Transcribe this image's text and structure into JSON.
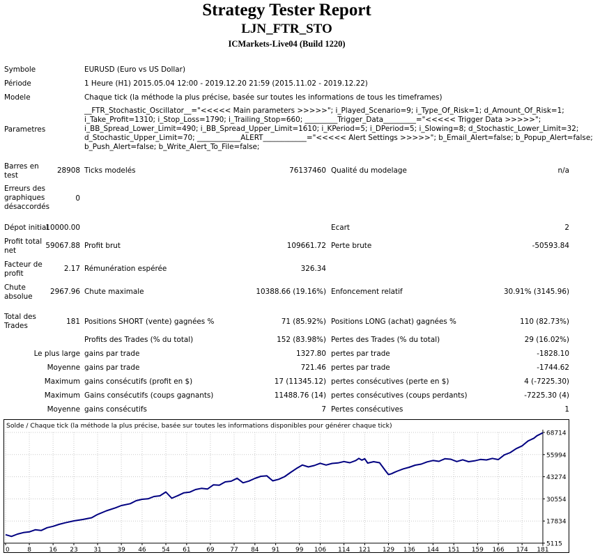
{
  "report": {
    "title": "Strategy Tester Report",
    "expert": "LJN_FTR_STO",
    "server": "ICMarkets-Live04 (Build 1220)"
  },
  "info": {
    "symbol_label": "Symbole",
    "symbol_value": "EURUSD (Euro vs US Dollar)",
    "period_label": "Période",
    "period_value": "1 Heure (H1) 2015.05.04 12:00 - 2019.12.20 21:59 (2015.11.02 - 2019.12.22)",
    "model_label": "Modele",
    "model_value": "Chaque tick (la méthode la plus précise, basée sur toutes les informations de tous les timeframes)",
    "params_label": "Parametres",
    "params_lines": [
      "__FTR_Stochastic_Oscillator__=\"<<<<< Main parameters >>>>>\"; i_Played_Scenario=9; i_Type_Of_Risk=1; d_Amount_Of_Risk=1;",
      "i_Take_Profit=1310; i_Stop_Loss=1790; i_Trailing_Stop=660; _________Trigger_Data_________=\"<<<<< Trigger Data >>>>>\";",
      "i_BB_Spread_Lower_Limit=490; i_BB_Spread_Upper_Limit=1610; i_KPeriod=5; i_DPeriod=5; i_Slowing=8; d_Stochastic_Lower_Limit=32;",
      "d_Stochastic_Upper_Limit=70; ____________ALERT____________=\"<<<<< Alert Settings >>>>>\"; b_Email_Alert=false; b_Popup_Alert=false;",
      "b_Push_Alert=false; b_Write_Alert_To_File=false;"
    ]
  },
  "stats": {
    "bars_label": "Barres en test",
    "bars_value": "28908",
    "ticks_label": "Ticks modelés",
    "ticks_value": "76137460",
    "quality_label": "Qualité du modelage",
    "quality_value": "n/a",
    "errors_label": "Erreurs des graphiques désaccordés",
    "errors_value": "0",
    "deposit_label": "Dépot initial",
    "deposit_value": "10000.00",
    "spread_label": "Ecart",
    "spread_value": "2",
    "net_label": "Profit total net",
    "net_value": "59067.88",
    "gross_profit_label": "Profit brut",
    "gross_profit_value": "109661.72",
    "gross_loss_label": "Perte brute",
    "gross_loss_value": "-50593.84",
    "pf_label": "Facteur de profit",
    "pf_value": "2.17",
    "payoff_label": "Rémunération espérée",
    "payoff_value": "326.34",
    "abs_dd_label": "Chute absolue",
    "abs_dd_value": "2967.96",
    "max_dd_label": "Chute maximale",
    "max_dd_value": "10388.66 (19.16%)",
    "rel_dd_label": "Enfoncement relatif",
    "rel_dd_value": "30.91% (3145.96)",
    "trades_label": "Total des Trades",
    "trades_value": "181",
    "short_label": "Positions SHORT (vente) gagnées %",
    "short_value": "71 (85.92%)",
    "long_label": "Positions LONG (achat) gagnées %",
    "long_value": "110 (82.73%)",
    "profit_trades_label": "Profits des Trades (% du total)",
    "profit_trades_value": "152 (83.98%)",
    "loss_trades_label": "Pertes des Trades (% du total)",
    "loss_trades_value": "29 (16.02%)",
    "largest_label": "Le plus large",
    "largest_gain_label": "gains par trade",
    "largest_gain_value": "1327.80",
    "largest_loss_label": "pertes par trade",
    "largest_loss_value": "-1828.10",
    "avg_label": "Moyenne",
    "avg_gain_label": "gains par trade",
    "avg_gain_value": "721.46",
    "avg_loss_label": "pertes par trade",
    "avg_loss_value": "-1744.62",
    "max1_label": "Maximum",
    "max_consec_wins_label": "gains consécutifs (profit en $)",
    "max_consec_wins_value": "17 (11345.12)",
    "max_consec_losses_label": "pertes consécutives (perte en $)",
    "max_consec_losses_value": "4 (-7225.30)",
    "max2_label": "Maximum",
    "max_consec_profit_label": "Gains consécutifs (coups gagnants)",
    "max_consec_profit_value": "11488.76 (14)",
    "max_consec_loss_label": "pertes consécutives (coups perdants)",
    "max_consec_loss_value": "-7225.30 (4)",
    "avg2_label": "Moyenne",
    "avg_consec_wins_label": "gains consécutifs",
    "avg_consec_wins_value": "7",
    "avg_consec_losses_label": "Pertes consécutives",
    "avg_consec_losses_value": "1"
  },
  "chart_data": {
    "type": "line",
    "title": "Solde / Chaque tick (la méthode la plus précise, basée sur toutes les informations disponibles pour générer chaque tick)",
    "x_ticks": [
      0,
      8,
      16,
      23,
      31,
      39,
      46,
      54,
      61,
      69,
      77,
      84,
      91,
      99,
      106,
      114,
      121,
      129,
      136,
      144,
      151,
      159,
      166,
      174,
      181
    ],
    "y_ticks": [
      5115,
      17834,
      30554,
      43274,
      55994,
      68714
    ],
    "xlim": [
      0,
      181
    ],
    "ylim": [
      5115,
      68714
    ],
    "grid": true,
    "line_color": "#000080",
    "series": [
      {
        "x": [
          0,
          2,
          4,
          6,
          8,
          10,
          12,
          14,
          16,
          18,
          20,
          23,
          26,
          29,
          31,
          34,
          37,
          39,
          42,
          44,
          46,
          48,
          50,
          52,
          54,
          56,
          58,
          60,
          62,
          64,
          66,
          68,
          70,
          72,
          74,
          76,
          78,
          80,
          82,
          84,
          86,
          88,
          90,
          92,
          94,
          96,
          98,
          100,
          102,
          104,
          106,
          108,
          110,
          112,
          114,
          116,
          118,
          119,
          120,
          121,
          122,
          124,
          126,
          128,
          129,
          130,
          131,
          132,
          134,
          136,
          138,
          140,
          142,
          144,
          146,
          148,
          150,
          152,
          154,
          156,
          158,
          160,
          162,
          164,
          166,
          168,
          170,
          172,
          174,
          176,
          178,
          179,
          181
        ],
        "y": [
          10000,
          9000,
          10300,
          11200,
          11600,
          12800,
          12400,
          14000,
          14800,
          15900,
          16800,
          17900,
          18700,
          19700,
          21600,
          23700,
          25400,
          26700,
          27800,
          29500,
          30300,
          30600,
          31900,
          32300,
          34500,
          30900,
          32400,
          34000,
          34400,
          35900,
          36600,
          36200,
          38600,
          38400,
          40300,
          40700,
          42400,
          39800,
          40800,
          42300,
          43500,
          43800,
          40900,
          41800,
          43300,
          45700,
          48000,
          50000,
          48900,
          49700,
          51000,
          50000,
          50900,
          51200,
          52000,
          51300,
          52600,
          53800,
          52800,
          53600,
          51100,
          51900,
          51300,
          46700,
          44500,
          45000,
          45800,
          46500,
          47800,
          48700,
          49900,
          50500,
          51800,
          52600,
          52100,
          53600,
          53300,
          52000,
          53000,
          51900,
          52400,
          53200,
          52900,
          53800,
          53100,
          55800,
          57100,
          59400,
          61000,
          63800,
          65400,
          66800,
          68500
        ]
      }
    ]
  }
}
